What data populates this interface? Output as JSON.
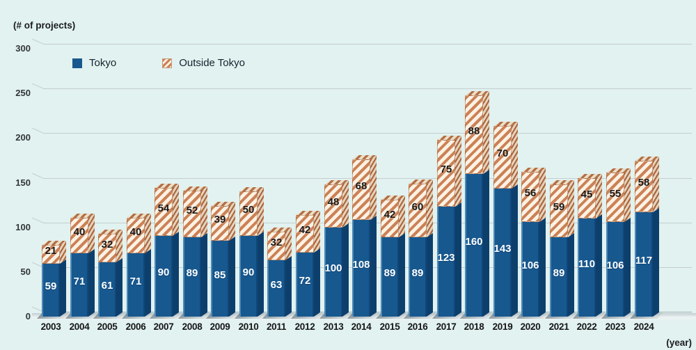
{
  "chart_data": {
    "type": "bar",
    "stacked": true,
    "title": "",
    "unit_label_y": "(# of projects)",
    "unit_label_x": "(year)",
    "categories": [
      "2003",
      "2004",
      "2005",
      "2006",
      "2007",
      "2008",
      "2009",
      "2010",
      "2011",
      "2012",
      "2013",
      "2014",
      "2015",
      "2016",
      "2017",
      "2018",
      "2019",
      "2020",
      "2021",
      "2022",
      "2023",
      "2024"
    ],
    "series": [
      {
        "name": "Tokyo",
        "style": "solid",
        "color": "#17588F",
        "values": [
          59,
          71,
          61,
          71,
          90,
          89,
          85,
          90,
          63,
          72,
          100,
          108,
          89,
          89,
          123,
          160,
          143,
          106,
          89,
          110,
          106,
          117
        ]
      },
      {
        "name": "Outside Tokyo",
        "style": "hatched",
        "stripe_color": "#CC8156",
        "stripe_bg": "#FBF2E4",
        "values": [
          21,
          40,
          32,
          40,
          54,
          52,
          39,
          50,
          32,
          42,
          48,
          68,
          42,
          60,
          75,
          88,
          70,
          56,
          59,
          45,
          55,
          58
        ]
      }
    ],
    "ylim": [
      0,
      300
    ],
    "yticks": [
      0,
      50,
      100,
      150,
      200,
      250,
      300
    ],
    "grid": true,
    "legend_position": "top-left",
    "effect": "3d-bars",
    "colors": {
      "background": "#E1F2F0",
      "tokyo_bar": "#17588F",
      "outside_stripe": "#CC8156",
      "outside_bg": "#FBF2E4",
      "gridline": "#C5CDD0"
    }
  }
}
